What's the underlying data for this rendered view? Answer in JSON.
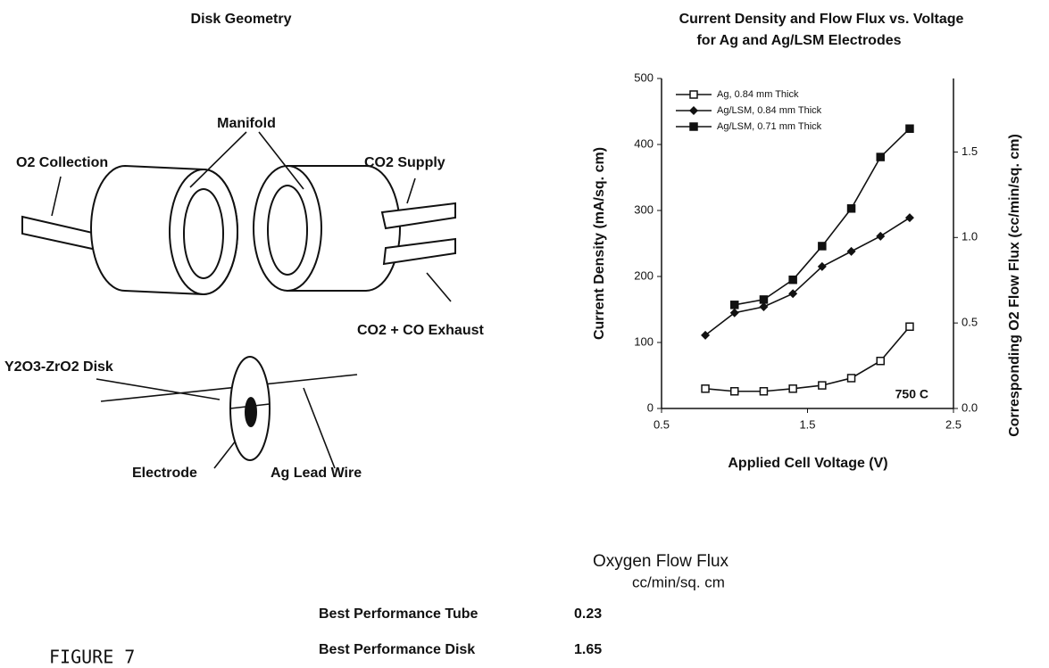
{
  "diagram": {
    "title": "Disk Geometry",
    "labels": [
      "Manifold",
      "O2 Collection",
      "CO2 Supply",
      "CO2 + CO Exhaust",
      "Y2O3-ZrO2 Disk",
      "Electrode",
      "Ag Lead Wire"
    ]
  },
  "chart_data": {
    "type": "line",
    "title": [
      "Current Density and Flow Flux vs. Voltage",
      "for Ag and Ag/LSM Electrodes"
    ],
    "x_label": "Applied Cell Voltage (V)",
    "y_label": "Current Density (mA/sq. cm)",
    "y2_label": "Corresponding O2 Flow Flux (cc/min/sq. cm)",
    "annotation": "750 C",
    "x": [
      0.8,
      1.0,
      1.2,
      1.4,
      1.6,
      1.8,
      2.0,
      2.2
    ],
    "series": [
      {
        "name": "Ag, 0.84 mm Thick",
        "color": "#111111",
        "marker": "open-square",
        "values": [
          30,
          26,
          26,
          30,
          35,
          46,
          72,
          124
        ]
      },
      {
        "name": "Ag/LSM, 0.84 mm Thick",
        "color": "#111111",
        "marker": "diamond",
        "values": [
          111,
          145,
          154,
          174,
          215,
          238,
          261,
          289
        ]
      },
      {
        "name": "Ag/LSM, 0.71 mm Thick",
        "color": "#111111",
        "marker": "square",
        "values": [
          null,
          157,
          165,
          195,
          246,
          303,
          381,
          424
        ]
      }
    ],
    "xlim": [
      0.5,
      2.5
    ],
    "xticks": [
      0.5,
      1.5,
      2.5
    ],
    "ylim": [
      0,
      500
    ],
    "yticks": [
      0,
      100,
      200,
      300,
      400,
      500
    ],
    "y2lim": [
      0,
      1.93
    ],
    "y2ticks": [
      {
        "value": 0,
        "label": "0.0"
      },
      0.5,
      {
        "value": 1,
        "label": "1.0"
      },
      1.5
    ],
    "legend": "upper left",
    "grid": false
  },
  "table": {
    "header": [
      "Oxygen Flow Flux",
      "cc/min/sq. cm"
    ],
    "rows": [
      [
        "Best Performance Tube",
        "0.23"
      ],
      [
        "Best Performance Disk",
        "1.65"
      ]
    ]
  },
  "caption": "FIGURE 7"
}
